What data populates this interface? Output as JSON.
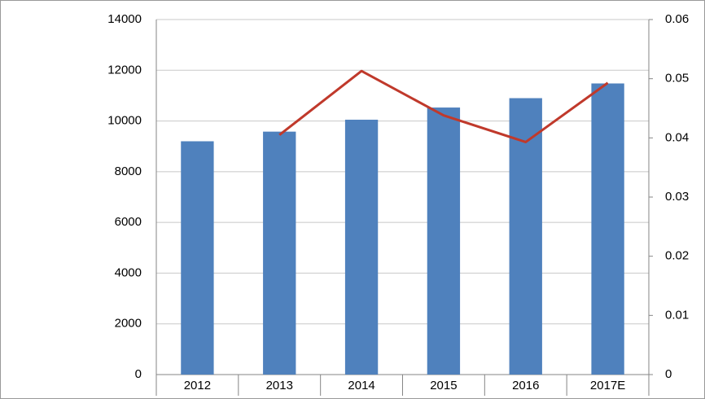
{
  "chart_data": {
    "type": "bar-line",
    "categories": [
      "2012",
      "2013",
      "2014",
      "2015",
      "2016",
      "2017E"
    ],
    "series": [
      {
        "type": "bar",
        "color": "#4f81bd",
        "values": [
          9200,
          9580,
          10050,
          10530,
          10900,
          11480
        ]
      },
      {
        "type": "line",
        "color": "#c0392b",
        "axis": "y2",
        "values": [
          null,
          0.0405,
          0.0513,
          0.0438,
          0.0393,
          0.0493
        ]
      }
    ],
    "ylim": [
      0,
      14000
    ],
    "yticks": [
      0,
      2000,
      4000,
      6000,
      8000,
      10000,
      12000,
      14000
    ],
    "y2lim": [
      0,
      0.06
    ],
    "y2ticks": [
      0,
      0.01,
      0.02,
      0.03,
      0.04,
      0.05,
      0.06
    ],
    "grid": true
  }
}
